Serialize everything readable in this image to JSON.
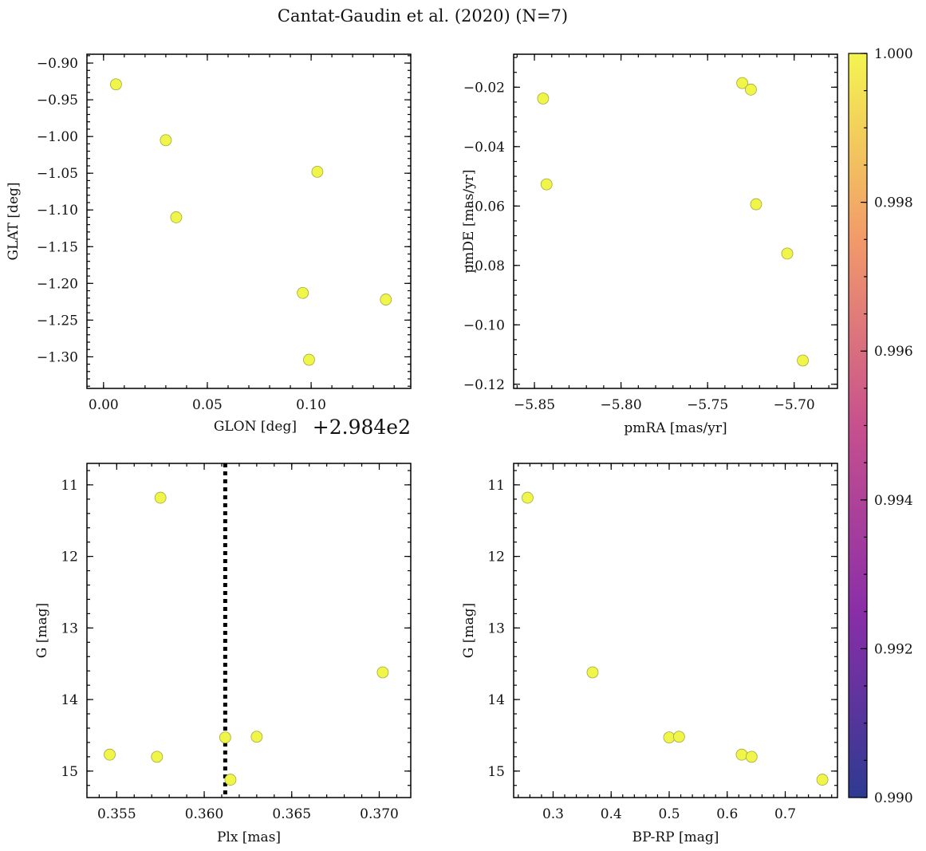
{
  "title": "Cantat-Gaudin et al. (2020) (N=7)",
  "chart_data": [
    {
      "type": "scatter",
      "id": "glon-glat",
      "xlabel": "GLON [deg]",
      "ylabel": "GLAT [deg]",
      "x_offset_label": "+2.984e2",
      "xlim": [
        -0.008,
        0.148
      ],
      "ylim": [
        -1.343,
        -0.888
      ],
      "y_inverted": false,
      "xticks": [
        0.0,
        0.05,
        0.1
      ],
      "xtick_labels": [
        "0.00",
        "0.05",
        "0.10"
      ],
      "x_minor": 0.01,
      "yticks": [
        -0.9,
        -0.95,
        -1.0,
        -1.05,
        -1.1,
        -1.15,
        -1.2,
        -1.25,
        -1.3
      ],
      "ytick_labels": [
        "−0.90",
        "−0.95",
        "−1.00",
        "−1.05",
        "−1.10",
        "−1.15",
        "−1.20",
        "−1.25",
        "−1.30"
      ],
      "y_minor": 0.01,
      "points": [
        {
          "x": 0.006,
          "y": -0.929
        },
        {
          "x": 0.03,
          "y": -1.005
        },
        {
          "x": 0.103,
          "y": -1.048
        },
        {
          "x": 0.035,
          "y": -1.11
        },
        {
          "x": 0.096,
          "y": -1.213
        },
        {
          "x": 0.136,
          "y": -1.222
        },
        {
          "x": 0.099,
          "y": -1.304
        }
      ]
    },
    {
      "type": "scatter",
      "id": "pmra-pmde",
      "xlabel": "pmRA [mas/yr]",
      "ylabel": "pmDE [mas/yr]",
      "xlim": [
        -5.862,
        -5.675
      ],
      "ylim": [
        -0.1214,
        -0.0089
      ],
      "y_inverted": false,
      "xticks": [
        -5.85,
        -5.8,
        -5.75,
        -5.7
      ],
      "xtick_labels": [
        "−5.85",
        "−5.80",
        "−5.75",
        "−5.70"
      ],
      "x_minor": 0.01,
      "yticks": [
        -0.02,
        -0.04,
        -0.06,
        -0.08,
        -0.1,
        -0.12
      ],
      "ytick_labels": [
        "−0.02",
        "−0.04",
        "−0.06",
        "−0.08",
        "−0.10",
        "−0.12"
      ],
      "y_minor": 0.005,
      "points": [
        {
          "x": -5.845,
          "y": -0.0238
        },
        {
          "x": -5.843,
          "y": -0.0527
        },
        {
          "x": -5.73,
          "y": -0.0186
        },
        {
          "x": -5.725,
          "y": -0.0208
        },
        {
          "x": -5.722,
          "y": -0.0594
        },
        {
          "x": -5.704,
          "y": -0.076
        },
        {
          "x": -5.695,
          "y": -0.112
        }
      ]
    },
    {
      "type": "scatter",
      "id": "plx-g",
      "xlabel": "Plx [mas]",
      "ylabel": "G [mag]",
      "xlim": [
        0.3533,
        0.3718
      ],
      "ylim": [
        15.37,
        10.7
      ],
      "y_inverted": true,
      "xticks": [
        0.355,
        0.36,
        0.365,
        0.37
      ],
      "xtick_labels": [
        "0.355",
        "0.360",
        "0.365",
        "0.370"
      ],
      "x_minor": 0.001,
      "yticks": [
        11,
        12,
        13,
        14,
        15
      ],
      "ytick_labels": [
        "11",
        "12",
        "13",
        "14",
        "15"
      ],
      "y_minor": 0.2,
      "vline": 0.3612,
      "points": [
        {
          "x": 0.3575,
          "y": 11.18
        },
        {
          "x": 0.3702,
          "y": 13.62
        },
        {
          "x": 0.3612,
          "y": 14.53
        },
        {
          "x": 0.363,
          "y": 14.52
        },
        {
          "x": 0.3546,
          "y": 14.77
        },
        {
          "x": 0.3573,
          "y": 14.8
        },
        {
          "x": 0.3615,
          "y": 15.12
        }
      ]
    },
    {
      "type": "scatter",
      "id": "bprp-g",
      "xlabel": "BP-RP [mag]",
      "ylabel": "G [mag]",
      "xlim": [
        0.232,
        0.79
      ],
      "ylim": [
        15.37,
        10.7
      ],
      "y_inverted": true,
      "xticks": [
        0.3,
        0.4,
        0.5,
        0.6,
        0.7
      ],
      "xtick_labels": [
        "0.3",
        "0.4",
        "0.5",
        "0.6",
        "0.7"
      ],
      "x_minor": 0.02,
      "yticks": [
        11,
        12,
        13,
        14,
        15
      ],
      "ytick_labels": [
        "11",
        "12",
        "13",
        "14",
        "15"
      ],
      "y_minor": 0.2,
      "points": [
        {
          "x": 0.256,
          "y": 11.18
        },
        {
          "x": 0.368,
          "y": 13.62
        },
        {
          "x": 0.5,
          "y": 14.53
        },
        {
          "x": 0.517,
          "y": 14.52
        },
        {
          "x": 0.625,
          "y": 14.77
        },
        {
          "x": 0.642,
          "y": 14.8
        },
        {
          "x": 0.764,
          "y": 15.12
        }
      ]
    }
  ],
  "colorbar": {
    "range": [
      0.99,
      1.0
    ],
    "ticks": [
      1.0,
      0.998,
      0.996,
      0.994,
      0.992,
      0.99
    ],
    "tick_labels": [
      "1.000",
      "0.998",
      "0.996",
      "0.994",
      "0.992",
      "0.990"
    ],
    "colormap": "plasma"
  },
  "colors": {
    "point_fill": "#f0f54a",
    "point_edge": "#a5a83a"
  }
}
